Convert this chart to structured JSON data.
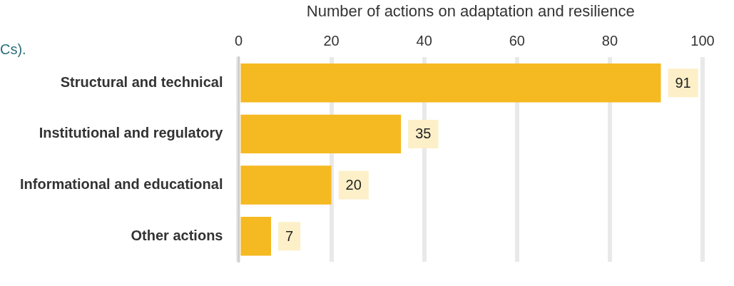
{
  "chart_data": {
    "type": "bar",
    "orientation": "horizontal",
    "xlabel": "Number of actions on adaptation and resilience",
    "categories": [
      "Structural and technical",
      "Institutional and regulatory",
      "Informational and educational",
      "Other actions"
    ],
    "values": [
      91,
      35,
      20,
      7
    ],
    "color": "#f5b921",
    "xlim": [
      0,
      100
    ],
    "xticks": [
      0,
      20,
      40,
      60,
      80,
      100
    ],
    "grid": "x",
    "legend": false,
    "data_labels": true,
    "annotations": [
      "Cs)."
    ]
  }
}
